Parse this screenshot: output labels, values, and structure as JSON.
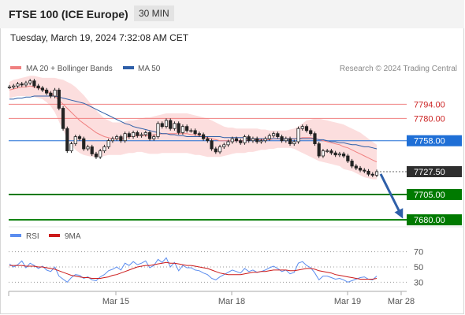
{
  "header": {
    "title": "FTSE 100 (ICE Europe)",
    "timeframe": "30 MIN",
    "timestamp": "Tuesday, March 19, 2024 7:32:08 AM CET"
  },
  "chart_data": {
    "type": "line",
    "legend": [
      {
        "name": "MA 20 + Bollinger Bands",
        "color": "#f08080"
      },
      {
        "name": "MA 50",
        "color": "#2e5fa8"
      }
    ],
    "credit": "Research © 2024 Trading Central",
    "levels": [
      {
        "value": 7794.0,
        "label": "7794.00",
        "kind": "resistance",
        "color": "#f08080"
      },
      {
        "value": 7780.0,
        "label": "7780.00",
        "kind": "resistance",
        "color": "#f08080"
      },
      {
        "value": 7758.0,
        "label": "7758.00",
        "kind": "pivot",
        "color": "#1f6fd6"
      },
      {
        "value": 7727.5,
        "label": "7727.50",
        "kind": "last-price",
        "color": "#2e2e2e"
      },
      {
        "value": 7705.0,
        "label": "7705.00",
        "kind": "support",
        "color": "#007a00"
      },
      {
        "value": 7680.0,
        "label": "7680.00",
        "kind": "support",
        "color": "#007a00"
      }
    ],
    "x_ticks": [
      "Mar 15",
      "Mar 18",
      "Mar 19",
      "Mar 28"
    ],
    "price_series": [
      7811,
      7812,
      7814,
      7813,
      7815,
      7817,
      7812,
      7810,
      7808,
      7805,
      7802,
      7808,
      7790,
      7770,
      7748,
      7755,
      7762,
      7760,
      7750,
      7752,
      7745,
      7742,
      7748,
      7752,
      7758,
      7760,
      7762,
      7758,
      7765,
      7762,
      7766,
      7763,
      7764,
      7766,
      7760,
      7762,
      7775,
      7772,
      7778,
      7770,
      7775,
      7766,
      7772,
      7768,
      7768,
      7765,
      7764,
      7760,
      7758,
      7750,
      7747,
      7752,
      7754,
      7757,
      7760,
      7758,
      7756,
      7762,
      7758,
      7760,
      7757,
      7758,
      7760,
      7763,
      7765,
      7762,
      7758,
      7760,
      7755,
      7757,
      7770,
      7772,
      7768,
      7765,
      7755,
      7743,
      7748,
      7748,
      7746,
      7744,
      7745,
      7743,
      7738,
      7733,
      7731,
      7729,
      7728,
      7725,
      7724,
      7727.5
    ],
    "ma20": [
      7808,
      7809,
      7810,
      7811,
      7811,
      7812,
      7811,
      7810,
      7809,
      7807,
      7805,
      7802,
      7798,
      7794,
      7790,
      7786,
      7782,
      7778,
      7775,
      7772,
      7769,
      7766,
      7764,
      7762,
      7761,
      7760,
      7760,
      7760,
      7761,
      7762,
      7762,
      7763,
      7763,
      7763,
      7763,
      7764,
      7764,
      7765,
      7765,
      7765,
      7765,
      7765,
      7765,
      7765,
      7764,
      7764,
      7763,
      7762,
      7761,
      7760,
      7759,
      7758,
      7758,
      7758,
      7758,
      7758,
      7758,
      7758,
      7759,
      7759,
      7759,
      7759,
      7759,
      7759,
      7760,
      7760,
      7760,
      7760,
      7760,
      7760,
      7760,
      7761,
      7761,
      7761,
      7760,
      7759,
      7758,
      7757,
      7756,
      7755,
      7754,
      7752,
      7751,
      7749,
      7747,
      7745,
      7743,
      7741,
      7739,
      7737
    ],
    "ma50": [
      7799,
      7799,
      7800,
      7800,
      7801,
      7801,
      7802,
      7802,
      7802,
      7802,
      7802,
      7802,
      7801,
      7800,
      7799,
      7798,
      7797,
      7796,
      7795,
      7793,
      7791,
      7789,
      7787,
      7785,
      7783,
      7781,
      7779,
      7777,
      7775,
      7774,
      7772,
      7771,
      7770,
      7769,
      7768,
      7767,
      7766,
      7765,
      7765,
      7764,
      7764,
      7763,
      7763,
      7762,
      7762,
      7762,
      7762,
      7762,
      7762,
      7762,
      7762,
      7762,
      7761,
      7761,
      7761,
      7761,
      7761,
      7761,
      7760,
      7760,
      7760,
      7760,
      7760,
      7760,
      7760,
      7760,
      7760,
      7760,
      7760,
      7760,
      7760,
      7760,
      7760,
      7760,
      7760,
      7759,
      7759,
      7758,
      7757,
      7757,
      7756,
      7756,
      7755,
      7754,
      7754,
      7753,
      7752,
      7752,
      7751,
      7750
    ],
    "bb_upper": [
      7816,
      7818,
      7819,
      7820,
      7821,
      7822,
      7822,
      7821,
      7820,
      7820,
      7820,
      7820,
      7819,
      7818,
      7816,
      7814,
      7811,
      7807,
      7803,
      7798,
      7793,
      7788,
      7784,
      7780,
      7778,
      7776,
      7776,
      7776,
      7777,
      7778,
      7778,
      7779,
      7780,
      7781,
      7781,
      7782,
      7783,
      7784,
      7785,
      7785,
      7785,
      7785,
      7785,
      7785,
      7784,
      7783,
      7782,
      7781,
      7780,
      7778,
      7776,
      7774,
      7772,
      7771,
      7771,
      7770,
      7770,
      7770,
      7770,
      7770,
      7770,
      7769,
      7769,
      7768,
      7768,
      7768,
      7768,
      7768,
      7769,
      7770,
      7772,
      7775,
      7778,
      7779,
      7780,
      7780,
      7779,
      7778,
      7777,
      7776,
      7775,
      7774,
      7772,
      7770,
      7768,
      7766,
      7763,
      7760,
      7757,
      7754
    ],
    "bb_lower": [
      7800,
      7801,
      7802,
      7802,
      7802,
      7802,
      7801,
      7800,
      7799,
      7796,
      7792,
      7786,
      7777,
      7768,
      7760,
      7754,
      7749,
      7746,
      7744,
      7743,
      7742,
      7742,
      7742,
      7743,
      7744,
      7744,
      7744,
      7744,
      7745,
      7746,
      7746,
      7747,
      7747,
      7746,
      7745,
      7745,
      7745,
      7746,
      7746,
      7746,
      7746,
      7746,
      7746,
      7746,
      7745,
      7744,
      7744,
      7743,
      7742,
      7742,
      7742,
      7742,
      7743,
      7744,
      7745,
      7746,
      7746,
      7746,
      7747,
      7747,
      7748,
      7749,
      7749,
      7750,
      7750,
      7751,
      7751,
      7751,
      7751,
      7750,
      7748,
      7746,
      7744,
      7742,
      7740,
      7738,
      7737,
      7736,
      7735,
      7734,
      7733,
      7730,
      7729,
      7728,
      7726,
      7724,
      7722,
      7721,
      7720,
      7720
    ],
    "y_range": [
      7677,
      7823
    ],
    "forecast": {
      "from": 7727.5,
      "to": 7680.0,
      "direction": "down",
      "color": "#2e5fa8"
    },
    "rsi": {
      "legend": [
        {
          "name": "RSI",
          "color": "#5b8def"
        },
        {
          "name": "9MA",
          "color": "#cc1a1a"
        }
      ],
      "levels": [
        70,
        50,
        30
      ],
      "y_range": [
        20,
        80
      ],
      "rsi_series": [
        54,
        50,
        53,
        58,
        49,
        55,
        52,
        48,
        51,
        46,
        44,
        50,
        38,
        34,
        30,
        36,
        40,
        39,
        35,
        37,
        33,
        32,
        37,
        40,
        45,
        47,
        50,
        46,
        55,
        52,
        57,
        53,
        55,
        58,
        49,
        52,
        60,
        56,
        62,
        50,
        56,
        45,
        52,
        49,
        49,
        46,
        45,
        42,
        40,
        35,
        33,
        37,
        40,
        43,
        46,
        44,
        42,
        48,
        44,
        46,
        43,
        44,
        46,
        49,
        51,
        48,
        44,
        46,
        41,
        43,
        55,
        57,
        52,
        49,
        42,
        33,
        38,
        38,
        36,
        34,
        35,
        33,
        30,
        32,
        34,
        36,
        37,
        34,
        33,
        38
      ],
      "ma9_series": [
        52,
        52,
        52,
        52,
        51,
        51,
        51,
        50,
        50,
        49,
        48,
        47,
        45,
        43,
        41,
        39,
        38,
        37,
        36,
        36,
        35,
        35,
        35,
        36,
        37,
        39,
        40,
        42,
        44,
        46,
        48,
        50,
        51,
        52,
        52,
        53,
        54,
        55,
        56,
        55,
        55,
        54,
        53,
        52,
        52,
        51,
        50,
        49,
        48,
        46,
        44,
        42,
        41,
        40,
        40,
        40,
        40,
        41,
        42,
        43,
        43,
        44,
        44,
        45,
        46,
        46,
        46,
        46,
        45,
        45,
        46,
        47,
        48,
        48,
        47,
        45,
        44,
        43,
        42,
        40,
        39,
        38,
        37,
        36,
        35,
        34,
        34,
        34,
        34,
        35
      ],
      "last_value": 38
    }
  }
}
